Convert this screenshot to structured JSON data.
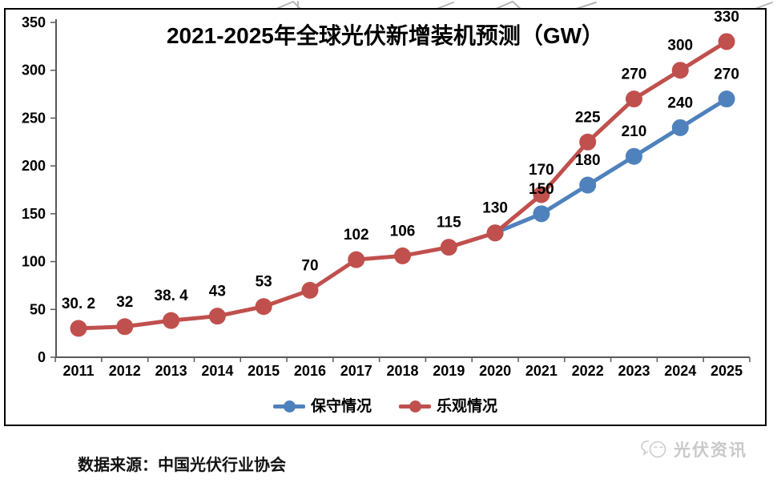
{
  "chart_data": {
    "type": "line",
    "title": "2021-2025年全球光伏新增装机预测（GW）",
    "categories": [
      "2011",
      "2012",
      "2013",
      "2014",
      "2015",
      "2016",
      "2017",
      "2018",
      "2019",
      "2020",
      "2021",
      "2022",
      "2023",
      "2024",
      "2025"
    ],
    "series": [
      {
        "name": "保守情况",
        "color": "#4F81BD",
        "values": [
          null,
          null,
          null,
          null,
          null,
          null,
          null,
          null,
          null,
          130,
          150,
          180,
          210,
          240,
          270
        ],
        "point_labels": [
          null,
          null,
          null,
          null,
          null,
          null,
          null,
          null,
          null,
          null,
          "150",
          "180",
          "210",
          "240",
          "270"
        ]
      },
      {
        "name": "乐观情况",
        "color": "#C0504D",
        "values": [
          30.2,
          32,
          38.4,
          43,
          53,
          70,
          102,
          106,
          115,
          130,
          170,
          225,
          270,
          300,
          330
        ],
        "point_labels": [
          "30. 2",
          "32",
          "38. 4",
          "43",
          "53",
          "70",
          "102",
          "106",
          "115",
          "130",
          "170",
          "225",
          "270",
          "300",
          "330"
        ]
      }
    ],
    "ylim": [
      0,
      350
    ],
    "y_ticks": [
      0,
      50,
      100,
      150,
      200,
      250,
      300,
      350
    ],
    "legend_position": "bottom",
    "grid": false,
    "axis_color": "#595959",
    "label_color": "#000000"
  },
  "source_note": "数据来源：中国光伏行业协会",
  "watermark_logo": {
    "text": "光伏资讯",
    "color": "#c9c9c9"
  }
}
